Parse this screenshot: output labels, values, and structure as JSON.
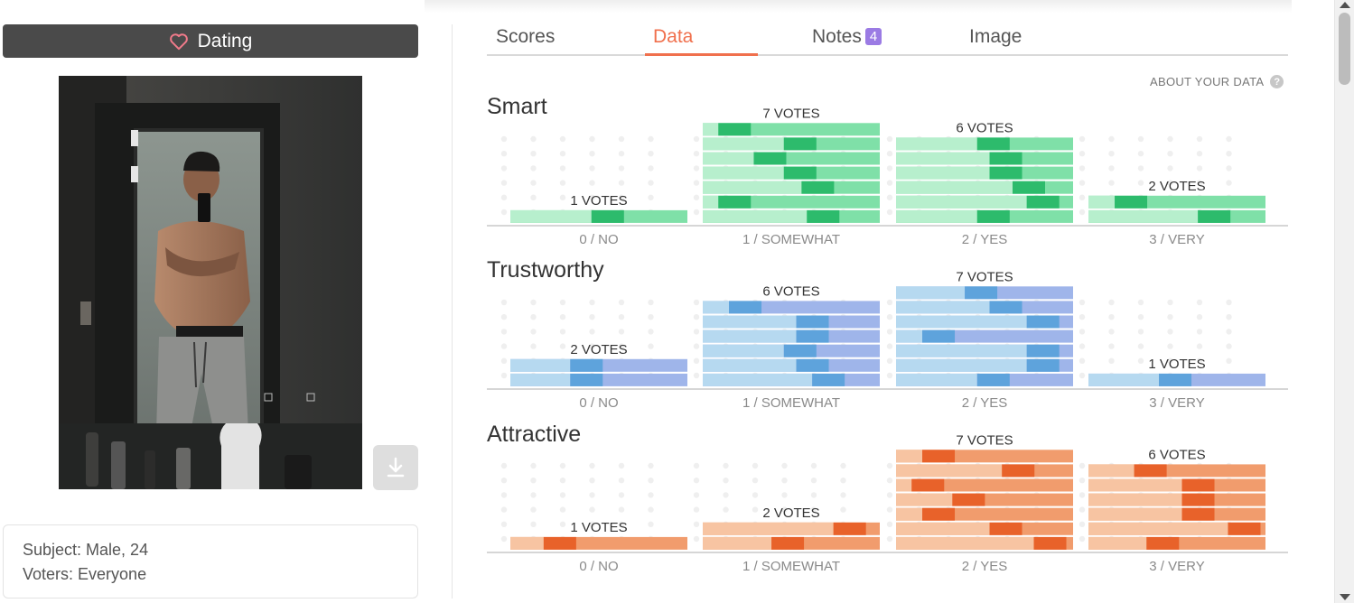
{
  "category": {
    "label": "Dating",
    "icon": "heart-icon"
  },
  "photo": {
    "description_icon": "photo",
    "download_icon": "download-icon"
  },
  "subject": {
    "line1": "Subject: Male, 24",
    "line2": "Voters: Everyone"
  },
  "tabs": [
    {
      "label": "Scores",
      "active": false
    },
    {
      "label": "Data",
      "active": true
    },
    {
      "label": "Notes",
      "active": false,
      "badge": "4"
    },
    {
      "label": "Image",
      "active": false
    }
  ],
  "about_data": "ABOUT YOUR DATA",
  "colors": {
    "accent": "#f0704d",
    "badge": "#9b7be4",
    "smart": [
      "#b7efcd",
      "#7fe0a8",
      "#2dbb6c"
    ],
    "trustworthy": [
      "#b6d9f0",
      "#9fb5ea",
      "#5ea3dc"
    ],
    "attractive": [
      "#f7c4a2",
      "#f19c6d",
      "#e8622a"
    ]
  },
  "chart_data": [
    {
      "type": "bar",
      "title": "Smart",
      "categories": [
        "0 / NO",
        "1 / SOMEWHAT",
        "2 / YES",
        "3 / VERY"
      ],
      "values": [
        1,
        7,
        6,
        2
      ],
      "value_labels": [
        "1 VOTES",
        "7 VOTES",
        "6 VOTES",
        "2 VOTES"
      ],
      "palette": "smart",
      "vote_markers": [
        [
          0.55
        ],
        [
          0.68,
          0.18,
          0.65,
          0.55,
          0.38,
          0.55,
          0.18
        ],
        [
          0.55,
          0.83,
          0.75,
          0.62,
          0.62,
          0.55
        ],
        [
          0.71,
          0.24
        ]
      ]
    },
    {
      "type": "bar",
      "title": "Trustworthy",
      "categories": [
        "0 / NO",
        "1 / SOMEWHAT",
        "2 / YES",
        "3 / VERY"
      ],
      "values": [
        2,
        6,
        7,
        1
      ],
      "value_labels": [
        "2 VOTES",
        "6 VOTES",
        "7 VOTES",
        "1 VOTES"
      ],
      "palette": "trustworthy",
      "vote_markers": [
        [
          0.43,
          0.43
        ],
        [
          0.71,
          0.62,
          0.55,
          0.62,
          0.62,
          0.24
        ],
        [
          0.55,
          0.83,
          0.83,
          0.24,
          0.83,
          0.62,
          0.48
        ],
        [
          0.49
        ]
      ]
    },
    {
      "type": "bar",
      "title": "Attractive",
      "categories": [
        "0 / NO",
        "1 / SOMEWHAT",
        "2 / YES",
        "3 / VERY"
      ],
      "values": [
        1,
        2,
        7,
        6
      ],
      "value_labels": [
        "1 VOTES",
        "2 VOTES",
        "7 VOTES",
        "6 VOTES"
      ],
      "palette": "attractive",
      "vote_markers": [
        [
          0.28
        ],
        [
          0.48,
          0.83
        ],
        [
          0.87,
          0.62,
          0.24,
          0.41,
          0.18,
          0.69,
          0.24
        ],
        [
          0.42,
          0.88,
          0.62,
          0.62,
          0.62,
          0.35
        ]
      ]
    }
  ]
}
